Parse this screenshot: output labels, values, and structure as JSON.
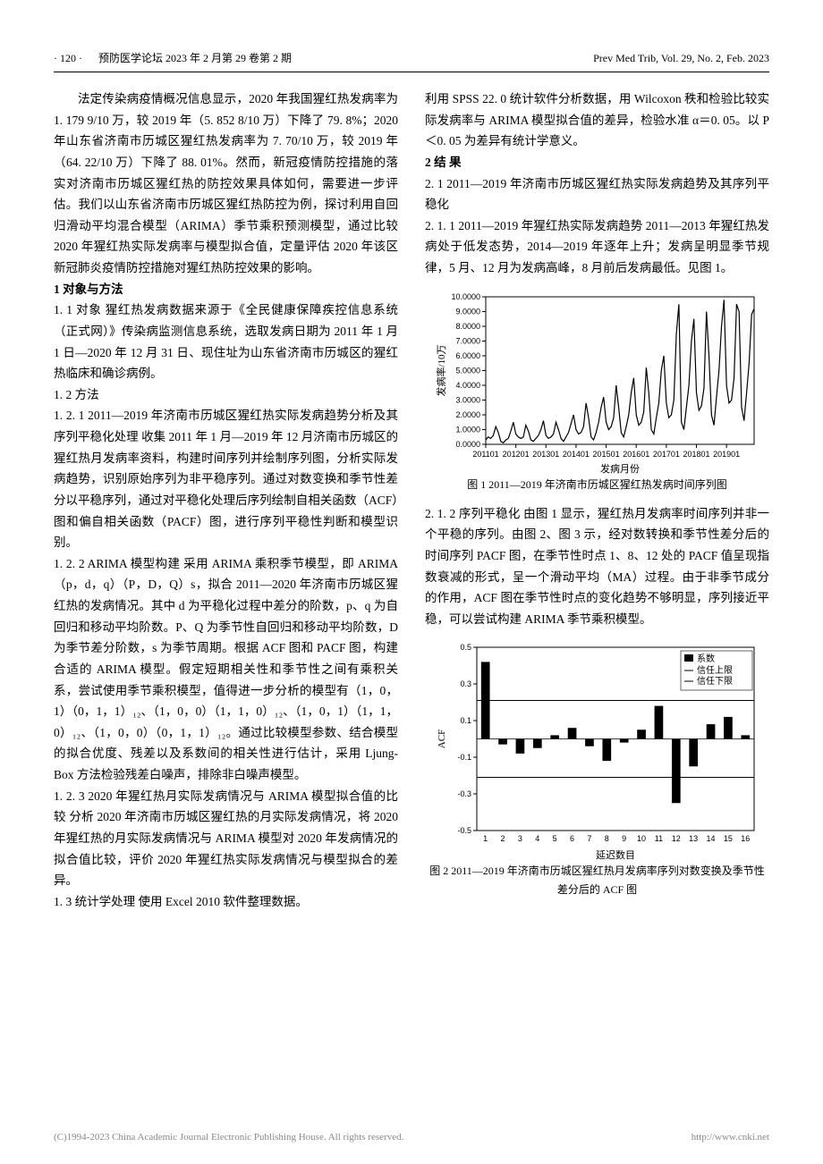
{
  "header": {
    "page_number": "· 120 ·",
    "journal_cn": "预防医学论坛  2023 年 2 月第 29 卷第 2 期",
    "journal_en": "Prev Med Trib, Vol. 29, No. 2, Feb. 2023"
  },
  "left_col": {
    "intro": "法定传染病疫情概况信息显示，2020 年我国猩红热发病率为 1. 179 9/10 万，较 2019 年（5. 852 8/10 万）下降了 79. 8%；2020 年山东省济南市历城区猩红热发病率为 7. 70/10 万，较 2019 年（64. 22/10 万）下降了 88. 01%。然而，新冠疫情防控措施的落实对济南市历城区猩红热的防控效果具体如何，需要进一步评估。我们以山东省济南市历城区猩红热防控为例，探讨利用自回归滑动平均混合模型（ARIMA）季节乘积预测模型，通过比较 2020 年猩红热实际发病率与模型拟合值，定量评估 2020 年该区新冠肺炎疫情防控措施对猩红热防控效果的影响。",
    "s1_title": "1  对象与方法",
    "s1_1": "1. 1  对象  猩红热发病数据来源于《全民健康保障疾控信息系统（正式网）》传染病监测信息系统，选取发病日期为 2011 年 1 月 1 日—2020 年 12 月 31 日、现住址为山东省济南市历城区的猩红热临床和确诊病例。",
    "s1_2": "1. 2  方法",
    "s1_2_1": "1. 2. 1  2011—2019 年济南市历城区猩红热实际发病趋势分析及其序列平稳化处理  收集 2011 年 1 月—2019 年 12 月济南市历城区的猩红热月发病率资料，构建时间序列并绘制序列图，分析实际发病趋势，识别原始序列为非平稳序列。通过对数变换和季节性差分以平稳序列，通过对平稳化处理后序列绘制自相关函数（ACF）图和偏自相关函数（PACF）图，进行序列平稳性判断和模型识别。",
    "s1_2_2": "1. 2. 2  ARIMA 模型构建  采用 ARIMA 乘积季节模型，即 ARIMA（p，d，q）（P，D，Q）s，拟合 2011—2020 年济南市历城区猩红热的发病情况。其中 d 为平稳化过程中差分的阶数，p、q 为自回归和移动平均阶数。P、Q 为季节性自回归和移动平均阶数，D 为季节差分阶数，s 为季节周期。根据 ACF 图和 PACF 图，构建合适的 ARIMA 模型。假定短期相关性和季节性之间有乘积关系，尝试使用季节乘积模型，值得进一步分析的模型有（1，0，1）（0，1，1）₁₂、（1，0，0）（1，1，0）₁₂、（1，0，1）（1，1，0）₁₂、（1，0，0）（0，1，1）₁₂。通过比较模型参数、结合模型的拟合优度、残差以及系数间的相关性进行估计，采用 Ljung-Box 方法检验残差白噪声，排除非白噪声模型。",
    "s1_2_3": "1. 2. 3  2020 年猩红热月实际发病情况与 ARIMA 模型拟合值的比较  分析 2020 年济南市历城区猩红热的月实际发病情况，将 2020 年猩红热的月实际发病情况与 ARIMA 模型对 2020 年发病情况的拟合值比较，评价 2020 年猩红热实际发病情况与模型拟合的差异。",
    "s1_3": "1. 3  统计学处理  使用 Excel 2010 软件整理数据。"
  },
  "right_col": {
    "cont": "利用 SPSS 22. 0 统计软件分析数据，用 Wilcoxon 秩和检验比较实际发病率与 ARIMA 模型拟合值的差异，检验水准 α＝0. 05。以 P＜0. 05 为差异有统计学意义。",
    "s2_title": "2  结  果",
    "s2_1": "2. 1  2011—2019 年济南市历城区猩红热实际发病趋势及其序列平稳化",
    "s2_1_1": "2. 1. 1  2011—2019 年猩红热实际发病趋势  2011—2013 年猩红热发病处于低发态势，2014—2019 年逐年上升；发病呈明显季节规律，5 月、12 月为发病高峰，8 月前后发病最低。见图 1。",
    "s2_1_2": "2. 1. 2  序列平稳化  由图 1 显示，猩红热月发病率时间序列并非一个平稳的序列。由图 2、图 3 示，经对数转换和季节性差分后的时间序列 PACF 图，在季节性时点 1、8、12 处的 PACF 值呈现指数衰减的形式，呈一个滑动平均（MA）过程。由于非季节成分的作用，ACF 图在季节性时点的变化趋势不够明显，序列接近平稳，可以尝试构建 ARIMA 季节乘积模型。"
  },
  "fig1": {
    "caption": "图 1  2011—2019 年济南市历城区猩红热发病时间序列图",
    "ylabel": "发病率/10万",
    "xlabel": "发病月份",
    "ylim": [
      0,
      10
    ],
    "ytick_step": 1.0,
    "yticks_labels": [
      "0.0000",
      "1.0000",
      "2.0000",
      "3.0000",
      "4.0000",
      "5.0000",
      "6.0000",
      "7.0000",
      "8.0000",
      "9.0000",
      "10.0000"
    ],
    "xticks": [
      "201101",
      "201201",
      "201301",
      "201401",
      "201501",
      "201601",
      "201701",
      "201801",
      "201901"
    ],
    "series": [
      0.3,
      0.5,
      0.4,
      0.6,
      1.2,
      0.8,
      0.2,
      0.1,
      0.3,
      0.4,
      0.9,
      1.5,
      0.7,
      0.5,
      0.4,
      0.5,
      1.3,
      0.9,
      0.3,
      0.2,
      0.4,
      0.6,
      1.0,
      1.6,
      0.6,
      0.4,
      0.5,
      0.7,
      1.5,
      1.0,
      0.4,
      0.2,
      0.5,
      0.8,
      1.4,
      2.0,
      1.0,
      0.7,
      0.8,
      1.2,
      2.8,
      1.8,
      0.5,
      0.3,
      0.8,
      1.5,
      2.5,
      3.2,
      1.5,
      1.0,
      1.2,
      1.8,
      4.0,
      2.5,
      0.8,
      0.5,
      1.2,
      2.0,
      3.5,
      4.5,
      2.0,
      1.3,
      1.5,
      2.2,
      5.2,
      3.5,
      1.0,
      0.7,
      1.8,
      2.8,
      5.0,
      6.0,
      2.8,
      1.8,
      2.0,
      3.0,
      7.5,
      9.5,
      1.5,
      1.0,
      2.5,
      4.0,
      7.0,
      8.5,
      3.5,
      2.3,
      2.6,
      3.8,
      9.0,
      6.0,
      2.0,
      1.3,
      3.2,
      5.0,
      8.0,
      9.8,
      4.0,
      2.8,
      3.0,
      4.5,
      9.5,
      9.0,
      2.5,
      1.6,
      3.5,
      5.5,
      8.8,
      9.2
    ],
    "line_color": "#000000",
    "background_color": "#ffffff"
  },
  "fig2": {
    "caption": "图 2  2011—2019 年济南市历城区猩红热月发病率序列对数变换及季节性差分后的 ACF 图",
    "ylabel": "ACF",
    "xlabel": "延迟数目",
    "ylim": [
      -0.5,
      0.5
    ],
    "yticks": [
      -0.5,
      -0.3,
      -0.1,
      0.1,
      0.3,
      0.5
    ],
    "xlim": [
      1,
      16
    ],
    "legend": {
      "coef": "系数",
      "upper": "信任上限",
      "lower": "信任下限"
    },
    "ci": 0.21,
    "values": [
      0.42,
      -0.03,
      -0.08,
      -0.05,
      0.02,
      0.06,
      -0.04,
      -0.12,
      -0.02,
      0.05,
      0.18,
      -0.35,
      -0.15,
      0.08,
      0.12,
      0.02
    ],
    "bar_color": "#000000",
    "ci_color": "#000000"
  },
  "footer": {
    "copyright": "(C)1994-2023 China Academic Journal Electronic Publishing House. All rights reserved.",
    "url": "http://www.cnki.net"
  }
}
